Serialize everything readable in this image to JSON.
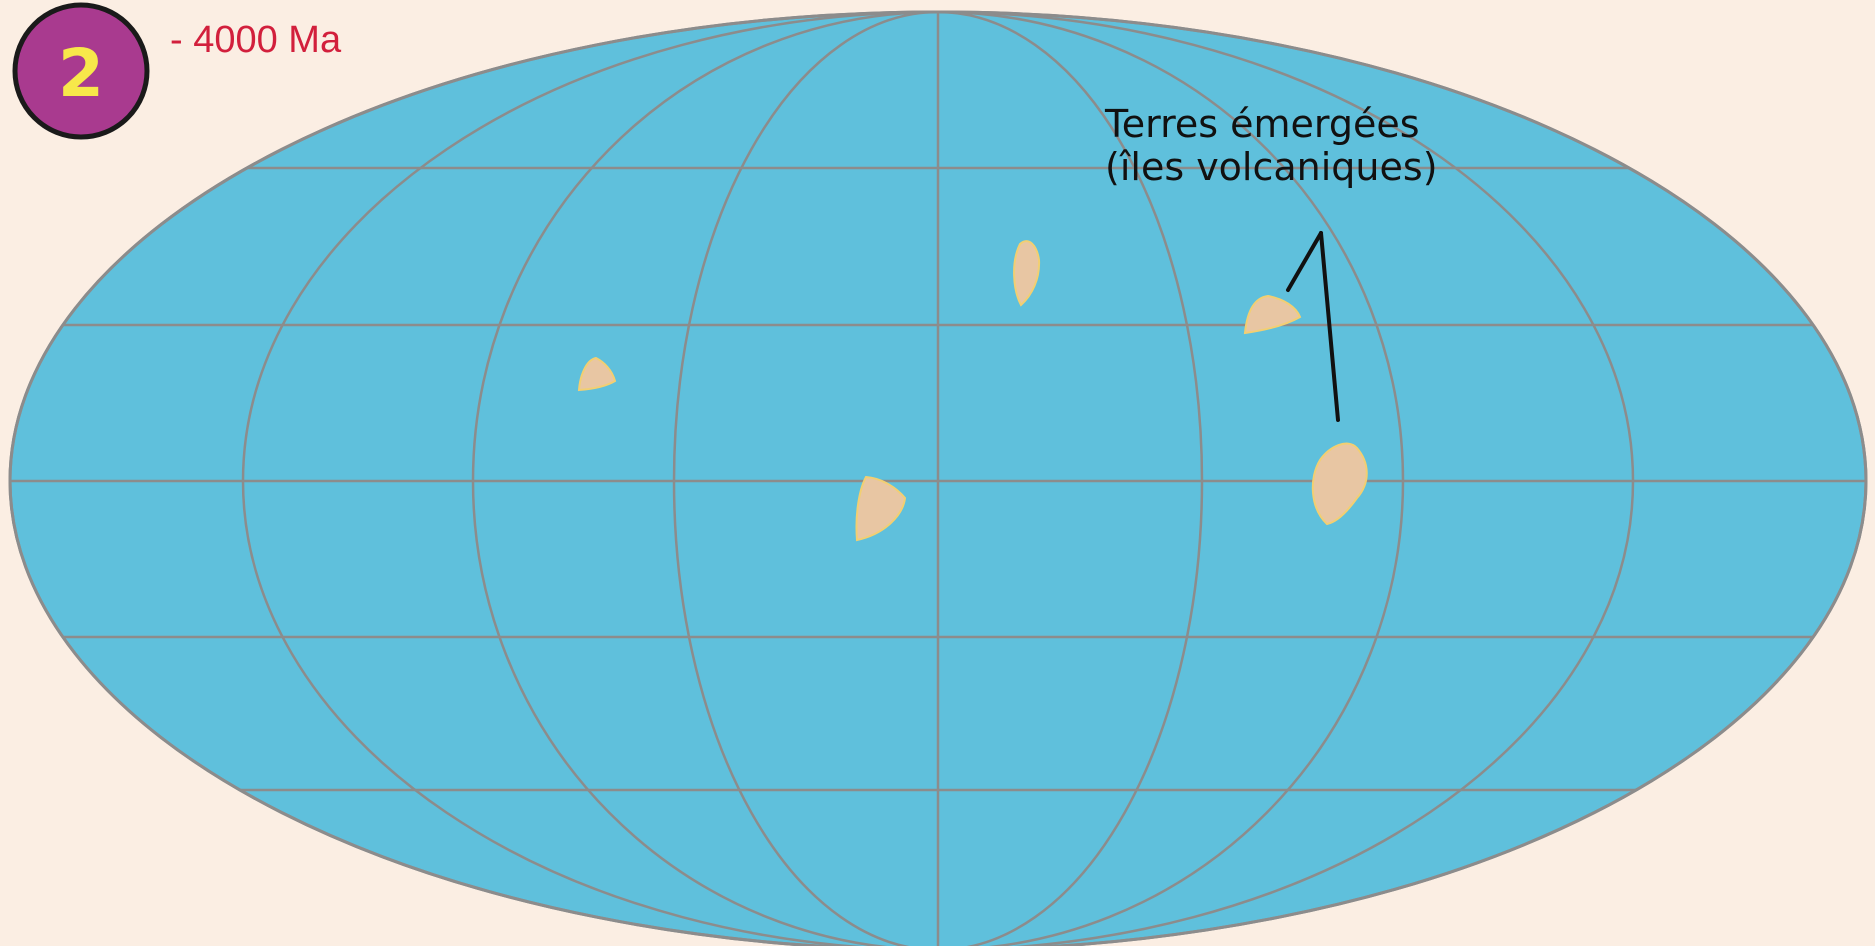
{
  "figure": {
    "badge_number": "2",
    "time_label": "- 4000 Ma"
  },
  "annotation": {
    "line1": "Terres émergées",
    "line2": "(îles volcaniques)"
  },
  "colors": {
    "background": "#fbeee3",
    "ocean": "#5fc0dc",
    "graticule": "#8c8c8c",
    "land": "#e8c6a3",
    "land_highlight": "#f2cf72",
    "badge_fill": "#a93a8f",
    "badge_text": "#f7e84a",
    "time_text": "#d21f3c",
    "label_text": "#111111"
  },
  "map": {
    "projection": "Mollweide",
    "islands": [
      {
        "id": "island-west"
      },
      {
        "id": "island-center-south"
      },
      {
        "id": "island-north-central"
      },
      {
        "id": "island-east-small"
      },
      {
        "id": "island-east-large"
      }
    ]
  }
}
